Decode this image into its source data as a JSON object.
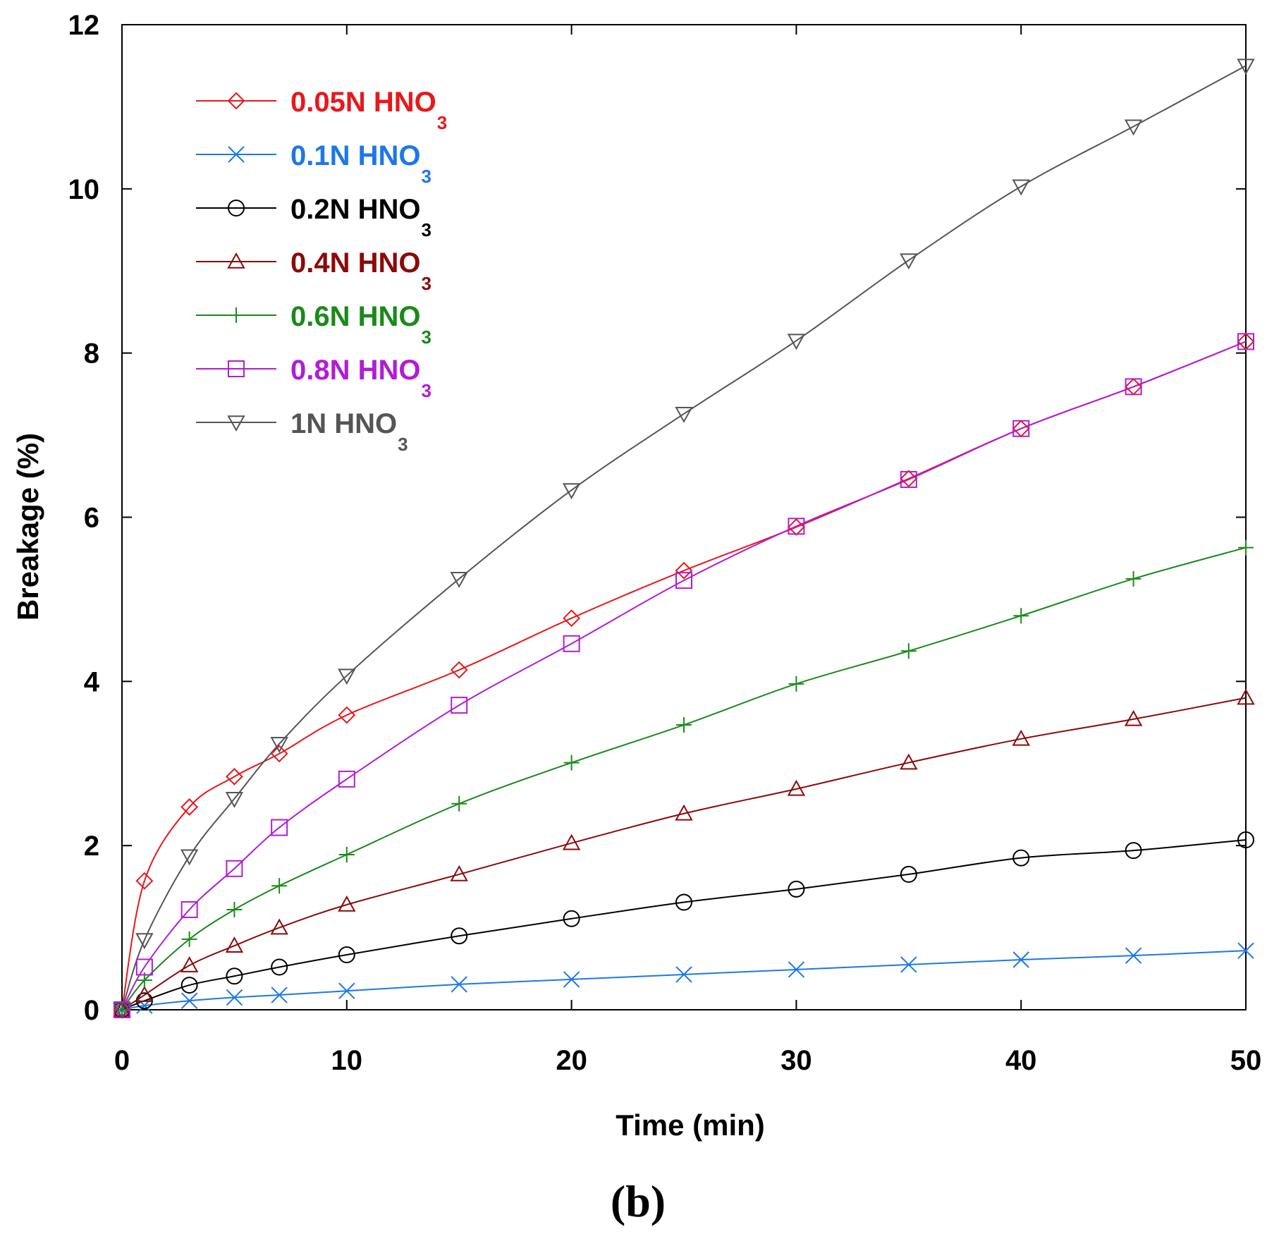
{
  "chart_data": {
    "type": "line",
    "title": "",
    "xlabel": "Time (min)",
    "ylabel": "Breakage (%)",
    "xlim": [
      0,
      50
    ],
    "ylim": [
      0,
      12
    ],
    "xticks": [
      0,
      10,
      20,
      30,
      40,
      50
    ],
    "yticks": [
      0,
      2,
      4,
      6,
      8,
      10,
      12
    ],
    "legend_position": "top-left",
    "caption": "(b)",
    "x": [
      0,
      1,
      3,
      5,
      7,
      10,
      15,
      20,
      25,
      30,
      35,
      40,
      45,
      50
    ],
    "series": [
      {
        "name": "0.05N HNO",
        "subscript": "3",
        "color": "#e8181c",
        "marker": "diamond",
        "values": [
          0,
          1.57,
          2.47,
          2.84,
          3.12,
          3.59,
          4.14,
          4.77,
          5.35,
          5.88,
          6.47,
          7.08,
          7.59,
          8.14
        ]
      },
      {
        "name": "0.1N HNO",
        "subscript": "3",
        "color": "#1c78e8",
        "marker": "x",
        "values": [
          0,
          0.05,
          0.11,
          0.15,
          0.18,
          0.23,
          0.31,
          0.37,
          0.43,
          0.49,
          0.55,
          0.61,
          0.66,
          0.72
        ]
      },
      {
        "name": "0.2N HNO",
        "subscript": "3",
        "color": "#000000",
        "marker": "circle",
        "values": [
          0,
          0.11,
          0.3,
          0.41,
          0.52,
          0.67,
          0.9,
          1.11,
          1.31,
          1.47,
          1.65,
          1.85,
          1.94,
          2.07
        ]
      },
      {
        "name": "0.4N HNO",
        "subscript": "3",
        "color": "#8b0a0a",
        "marker": "triangle-up",
        "values": [
          0,
          0.18,
          0.54,
          0.78,
          1.0,
          1.28,
          1.65,
          2.03,
          2.39,
          2.69,
          3.01,
          3.3,
          3.54,
          3.8
        ]
      },
      {
        "name": "0.6N HNO",
        "subscript": "3",
        "color": "#1a8a1a",
        "marker": "plus",
        "values": [
          0,
          0.36,
          0.86,
          1.22,
          1.51,
          1.89,
          2.51,
          3.01,
          3.47,
          3.97,
          4.37,
          4.8,
          5.25,
          5.63
        ]
      },
      {
        "name": "0.8N HNO",
        "subscript": "3",
        "color": "#b21cd6",
        "marker": "square",
        "values": [
          0,
          0.52,
          1.22,
          1.72,
          2.22,
          2.81,
          3.71,
          4.46,
          5.23,
          5.89,
          6.46,
          7.08,
          7.59,
          8.14
        ]
      },
      {
        "name": "1N HNO",
        "subscript": "3",
        "color": "#555555",
        "marker": "triangle-down",
        "values": [
          0,
          0.85,
          1.87,
          2.57,
          3.24,
          4.07,
          5.25,
          6.33,
          7.26,
          8.15,
          9.13,
          10.03,
          10.76,
          11.5
        ]
      }
    ]
  }
}
